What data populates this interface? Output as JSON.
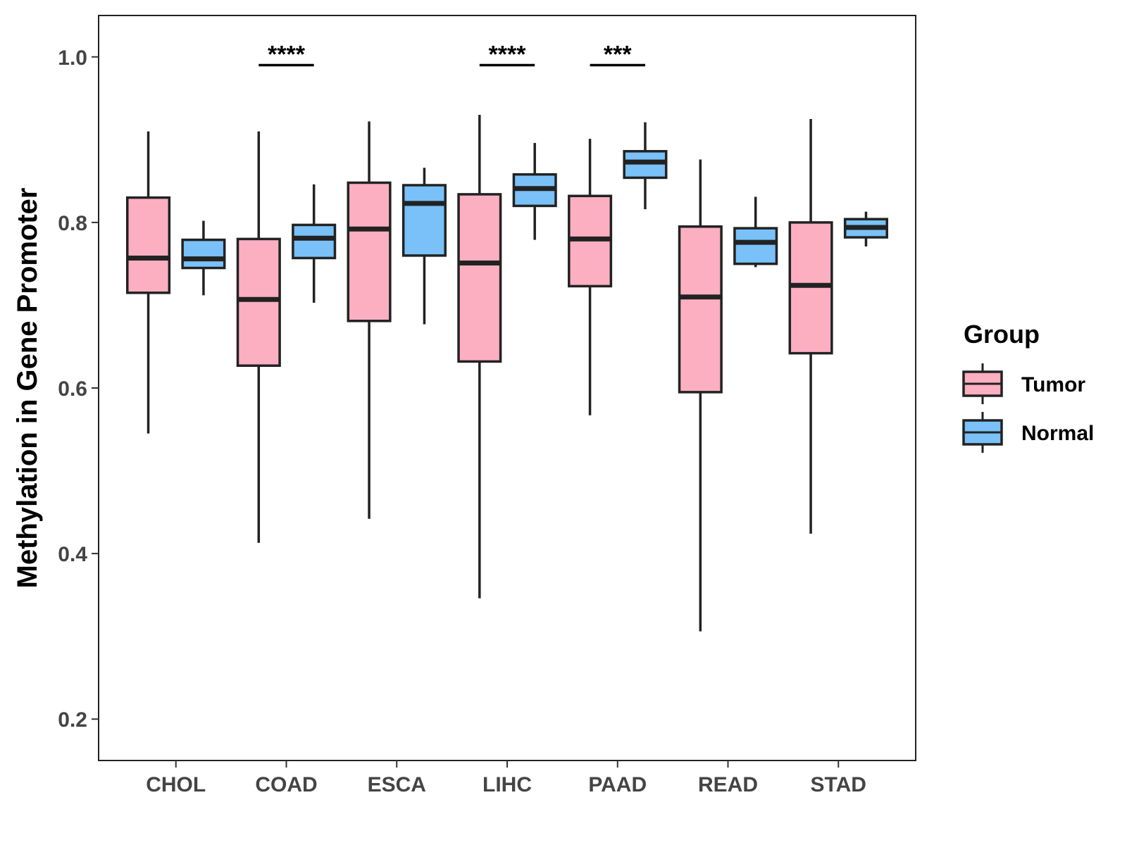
{
  "chart_data": {
    "type": "boxplot",
    "title": "",
    "xlabel": "",
    "ylabel": "Methylation in Gene Promoter",
    "ylim": [
      0.15,
      1.05
    ],
    "yticks": [
      0.2,
      0.4,
      0.6,
      0.8,
      1.0
    ],
    "ytick_labels": [
      "0.2",
      "0.4",
      "0.6",
      "0.8",
      "1.0"
    ],
    "categories": [
      "CHOL",
      "COAD",
      "ESCA",
      "LIHC",
      "PAAD",
      "READ",
      "STAD"
    ],
    "grid": false,
    "legend": {
      "title": "Group",
      "position": "right",
      "entries": [
        {
          "name": "Tumor",
          "color": "#fbafc1"
        },
        {
          "name": "Normal",
          "color": "#79c1f8"
        }
      ]
    },
    "series": [
      {
        "name": "Tumor",
        "color": "#fbafc1",
        "boxes": [
          {
            "category": "CHOL",
            "min": 0.545,
            "q1": 0.715,
            "median": 0.757,
            "q3": 0.83,
            "max": 0.91
          },
          {
            "category": "COAD",
            "min": 0.413,
            "q1": 0.627,
            "median": 0.707,
            "q3": 0.78,
            "max": 0.91
          },
          {
            "category": "ESCA",
            "min": 0.442,
            "q1": 0.681,
            "median": 0.792,
            "q3": 0.848,
            "max": 0.922
          },
          {
            "category": "LIHC",
            "min": 0.346,
            "q1": 0.632,
            "median": 0.751,
            "q3": 0.834,
            "max": 0.93
          },
          {
            "category": "PAAD",
            "min": 0.567,
            "q1": 0.723,
            "median": 0.78,
            "q3": 0.832,
            "max": 0.901
          },
          {
            "category": "READ",
            "min": 0.306,
            "q1": 0.595,
            "median": 0.71,
            "q3": 0.795,
            "max": 0.876
          },
          {
            "category": "STAD",
            "min": 0.424,
            "q1": 0.642,
            "median": 0.724,
            "q3": 0.8,
            "max": 0.925
          }
        ]
      },
      {
        "name": "Normal",
        "color": "#79c1f8",
        "boxes": [
          {
            "category": "CHOL",
            "min": 0.712,
            "q1": 0.745,
            "median": 0.756,
            "q3": 0.779,
            "max": 0.802
          },
          {
            "category": "COAD",
            "min": 0.703,
            "q1": 0.757,
            "median": 0.781,
            "q3": 0.797,
            "max": 0.846
          },
          {
            "category": "ESCA",
            "min": 0.677,
            "q1": 0.76,
            "median": 0.823,
            "q3": 0.845,
            "max": 0.866
          },
          {
            "category": "LIHC",
            "min": 0.779,
            "q1": 0.82,
            "median": 0.841,
            "q3": 0.858,
            "max": 0.896
          },
          {
            "category": "PAAD",
            "min": 0.816,
            "q1": 0.854,
            "median": 0.873,
            "q3": 0.886,
            "max": 0.921
          },
          {
            "category": "READ",
            "min": 0.746,
            "q1": 0.75,
            "median": 0.776,
            "q3": 0.793,
            "max": 0.831
          },
          {
            "category": "STAD",
            "min": 0.771,
            "q1": 0.782,
            "median": 0.794,
            "q3": 0.804,
            "max": 0.813
          }
        ]
      }
    ],
    "annotations": [
      {
        "category": "COAD",
        "label": "****",
        "y": 0.99
      },
      {
        "category": "LIHC",
        "label": "****",
        "y": 0.99
      },
      {
        "category": "PAAD",
        "label": "***",
        "y": 0.99
      }
    ]
  }
}
